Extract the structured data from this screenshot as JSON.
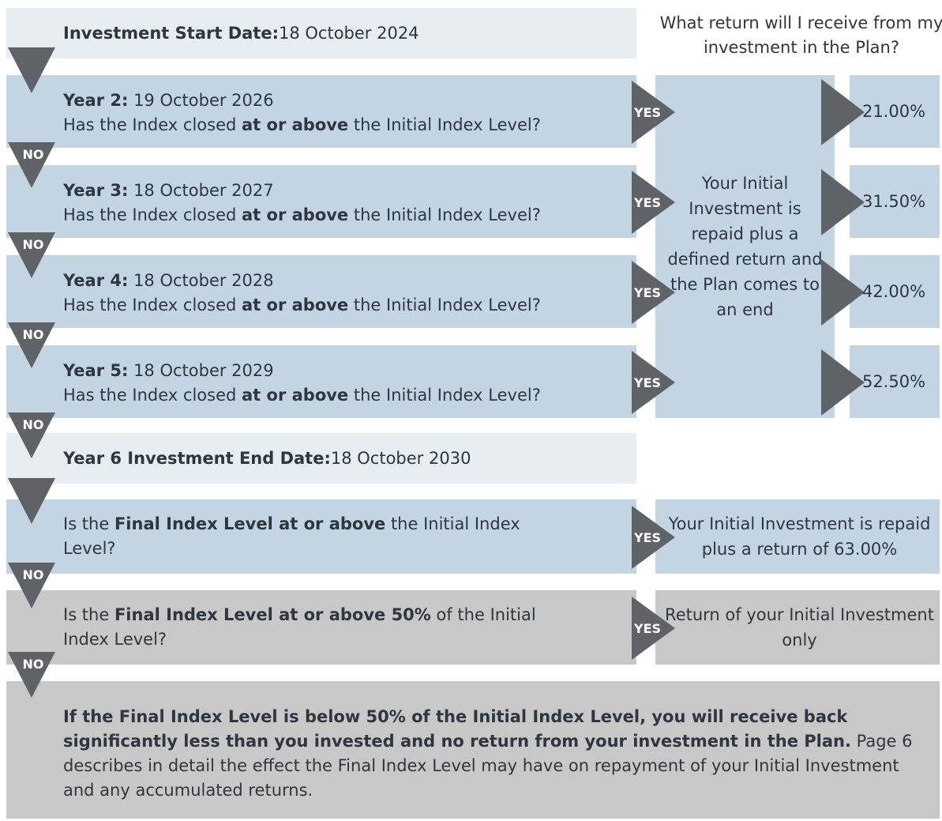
{
  "header": {
    "question": "What return will I receive from my investment in the Plan?"
  },
  "start": {
    "label": "Investment Start Date:",
    "date": "18 October 2024"
  },
  "years": [
    {
      "label": "Year 2:",
      "date": "19 October 2026",
      "question": [
        "Has the Index closed ",
        "at or above",
        " the Initial Index Level?"
      ],
      "yes": "YES",
      "return": "21.00%",
      "no": "NO"
    },
    {
      "label": "Year 3:",
      "date": "18 October 2027",
      "question": [
        "Has the Index closed ",
        "at or above",
        " the Initial Index Level?"
      ],
      "yes": "YES",
      "return": "31.50%",
      "no": "NO"
    },
    {
      "label": "Year 4:",
      "date": "18 October 2028",
      "question": [
        "Has the Index closed ",
        "at or above",
        " the Initial Index Level?"
      ],
      "yes": "YES",
      "return": "42.00%",
      "no": "NO"
    },
    {
      "label": "Year 5:",
      "date": "18 October 2029",
      "question": [
        "Has the Index closed ",
        "at or above",
        " the Initial Index Level?"
      ],
      "yes": "YES",
      "return": "52.50%",
      "no": "NO"
    }
  ],
  "outcome": "Your Initial Investment is repaid plus a defined return and the Plan comes to an end",
  "end": {
    "label": "Year 6 Investment End Date:",
    "date": "18 October 2030"
  },
  "final": [
    {
      "question": [
        "Is the ",
        "Final Index Level at or above",
        " the Initial Index Level?"
      ],
      "yes": "YES",
      "outcome": "Your Initial Investment is repaid plus a return of 63.00%",
      "no": "NO"
    },
    {
      "question": [
        "Is the ",
        "Final Index Level at or above 50%",
        " of the Initial Index Level?"
      ],
      "yes": "YES",
      "outcome": "Return of your Initial Investment only",
      "no": "NO"
    }
  ],
  "footer": {
    "bold": "If the Final Index Level is below 50% of the Initial Index Level, you will receive back significantly less than you invested and no return from your investment in the Plan.",
    "text": " Page 6 describes in detail the effect the Final Index Level may have on repayment of your Initial Investment and any accumulated returns."
  }
}
